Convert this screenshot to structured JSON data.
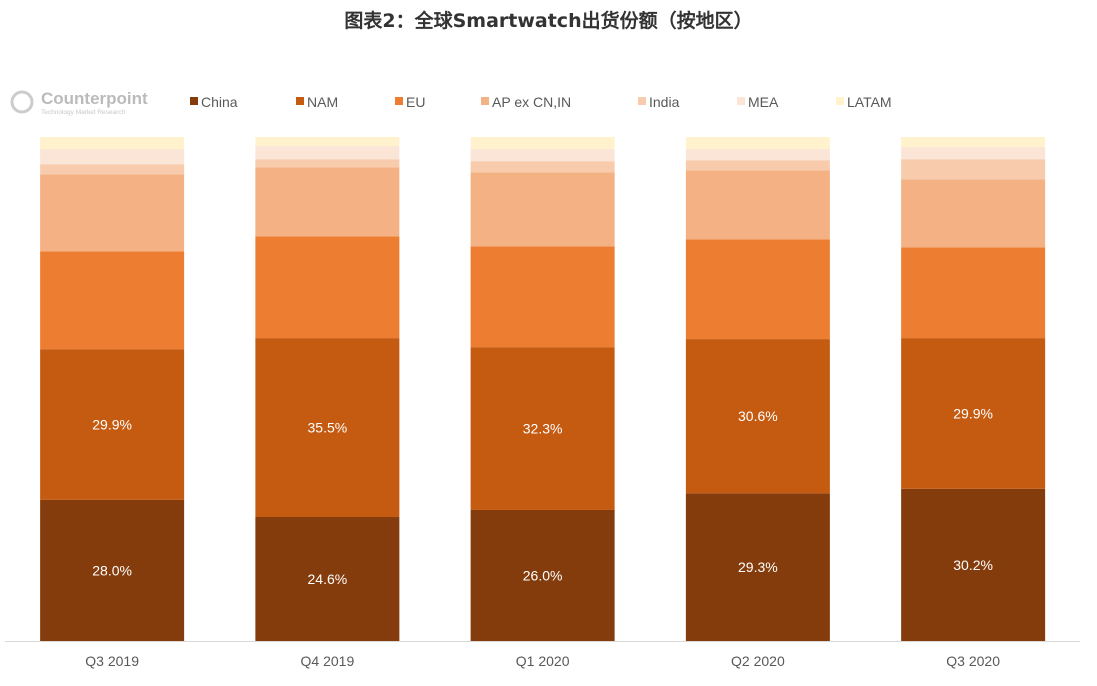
{
  "title": "图表2：全球Smartwatch出货份额（按地区）",
  "logo": {
    "name": "Counterpoint",
    "tagline": "Technology Market Research"
  },
  "chart_data": {
    "type": "bar",
    "stacked": true,
    "percent": true,
    "title": "图表2：全球Smartwatch出货份额（按地区）",
    "xlabel": "",
    "ylabel": "",
    "ylim": [
      0,
      100
    ],
    "grid": false,
    "legend_position": "top",
    "categories": [
      "Q3 2019",
      "Q4 2019",
      "Q1 2020",
      "Q2 2020",
      "Q3 2020"
    ],
    "series": [
      {
        "name": "China",
        "color": "#843c0c",
        "values": [
          28.0,
          24.6,
          26.0,
          29.3,
          30.2
        ],
        "labeled": true
      },
      {
        "name": "NAM",
        "color": "#c55a11",
        "values": [
          29.9,
          35.5,
          32.3,
          30.6,
          29.9
        ],
        "labeled": true
      },
      {
        "name": "EU",
        "color": "#ed7d31",
        "values": [
          19.4,
          20.2,
          20.0,
          19.8,
          18.0
        ],
        "labeled": false
      },
      {
        "name": "AP ex CN,IN",
        "color": "#f4b183",
        "values": [
          15.3,
          13.7,
          14.7,
          13.7,
          13.5
        ],
        "labeled": false
      },
      {
        "name": "India",
        "color": "#f8cbad",
        "values": [
          2.0,
          1.6,
          2.2,
          2.0,
          4.0
        ],
        "labeled": false
      },
      {
        "name": "MEA",
        "color": "#fbe5d6",
        "values": [
          3.0,
          2.6,
          2.4,
          2.2,
          2.4
        ],
        "labeled": false
      },
      {
        "name": "LATAM",
        "color": "#fff2cc",
        "values": [
          2.4,
          1.8,
          2.4,
          2.4,
          2.0
        ],
        "labeled": false
      }
    ],
    "data_labels": [
      [
        "28.0%",
        "24.6%",
        "26.0%",
        "29.3%",
        "30.2%"
      ],
      [
        "29.9%",
        "35.5%",
        "32.3%",
        "30.6%",
        "29.9%"
      ]
    ]
  }
}
